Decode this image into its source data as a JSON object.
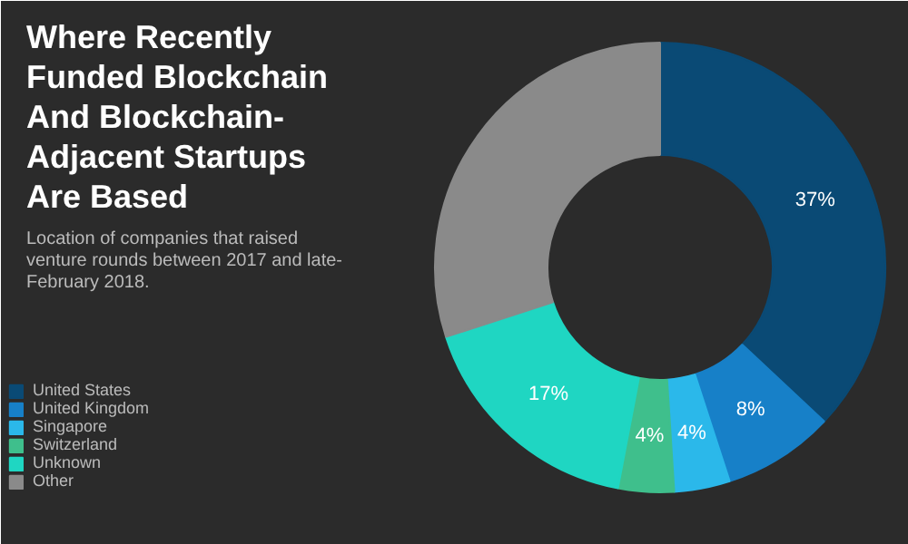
{
  "chart_data": {
    "type": "donut",
    "title": "Where Recently Funded Blockchain And Blockchain-Adjacent Startups Are Based",
    "subtitle": "Location of companies that raised venture rounds between 2017 and late-February 2018.",
    "categories": [
      "United States",
      "United Kingdom",
      "Singapore",
      "Switzerland",
      "Unknown",
      "Other"
    ],
    "values": [
      37,
      8,
      4,
      4,
      17,
      30
    ],
    "colors": [
      "#0a4a75",
      "#1780c8",
      "#2bb8ea",
      "#3fbf8c",
      "#1fd6c2",
      "#8a8a8a"
    ],
    "value_labels": [
      "37%",
      "8%",
      "4%",
      "4%",
      "17%",
      null
    ],
    "legend": "left"
  }
}
